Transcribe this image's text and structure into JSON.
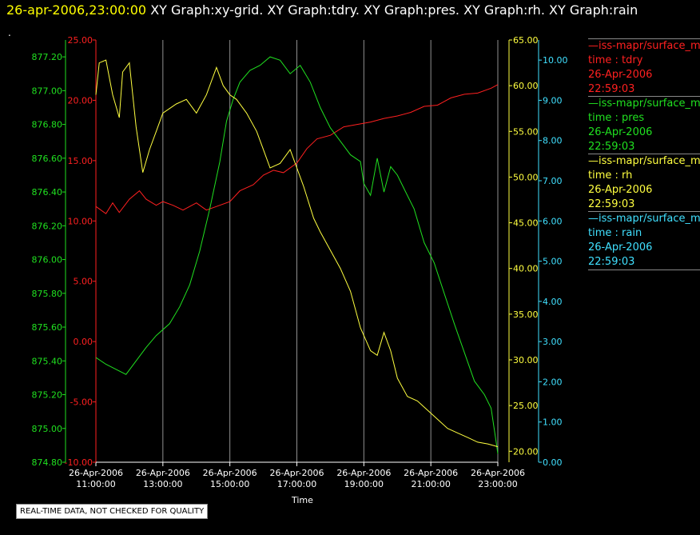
{
  "title": {
    "timestamp": "26-apr-2006,23:00:00",
    "graphs": "XY Graph:xy-grid.  XY Graph:tdry.  XY Graph:pres.  XY Graph:rh.  XY Graph:rain"
  },
  "dot": ".",
  "quality_note": "REAL-TIME DATA, NOT CHECKED FOR QUALITY",
  "legend": [
    {
      "header": "—iss-mapr/surface_m",
      "l1": "time : tdry",
      "l2": "26-Apr-2006",
      "l3": "22:59:03",
      "color": "#ff2020"
    },
    {
      "header": "—iss-mapr/surface_m",
      "l1": "time : pres",
      "l2": "26-Apr-2006",
      "l3": "22:59:03",
      "color": "#20e020"
    },
    {
      "header": "—iss-mapr/surface_m",
      "l1": "time : rh",
      "l2": "26-Apr-2006",
      "l3": "22:59:03",
      "color": "#ffff40"
    },
    {
      "header": "—iss-mapr/surface_m",
      "l1": "time : rain",
      "l2": "26-Apr-2006",
      "l3": "22:59:03",
      "color": "#40e0ff"
    }
  ],
  "chart_data": {
    "type": "line",
    "xlabel": "Time",
    "x_ticks": [
      {
        "date": "26-Apr-2006",
        "time": "11:00:00"
      },
      {
        "date": "26-Apr-2006",
        "time": "13:00:00"
      },
      {
        "date": "26-Apr-2006",
        "time": "15:00:00"
      },
      {
        "date": "26-Apr-2006",
        "time": "17:00:00"
      },
      {
        "date": "26-Apr-2006",
        "time": "19:00:00"
      },
      {
        "date": "26-Apr-2006",
        "time": "21:00:00"
      },
      {
        "date": "26-Apr-2006",
        "time": "23:00:00"
      }
    ],
    "x_hours": [
      11,
      23
    ],
    "grid": "vertical",
    "axes": {
      "pres": {
        "color": "#20e020",
        "range": [
          874.8,
          877.3
        ],
        "ticks": [
          "874.80",
          "875.00",
          "875.20",
          "875.40",
          "875.60",
          "875.80",
          "876.00",
          "876.20",
          "876.40",
          "876.60",
          "876.80",
          "877.00",
          "877.20"
        ]
      },
      "tdry": {
        "color": "#ff2020",
        "range": [
          -10,
          25
        ],
        "ticks": [
          "-10.00",
          "-5.00",
          "0.00",
          "5.00",
          "10.00",
          "15.00",
          "20.00",
          "25.00"
        ]
      },
      "rh": {
        "color": "#ffff40",
        "range": [
          18.8,
          65
        ],
        "ticks": [
          "20.00",
          "25.00",
          "30.00",
          "35.00",
          "40.00",
          "45.00",
          "50.00",
          "55.00",
          "60.00",
          "65.00"
        ]
      },
      "rain": {
        "color": "#40e0ff",
        "range": [
          0,
          10.5
        ],
        "ticks": [
          "0.00",
          "1.00",
          "2.00",
          "3.00",
          "4.00",
          "5.00",
          "6.00",
          "7.00",
          "8.00",
          "9.00",
          "10.00"
        ]
      }
    },
    "series": [
      {
        "name": "tdry",
        "axis": "tdry",
        "color": "#ff2020",
        "x": [
          11.0,
          11.3,
          11.5,
          11.7,
          12.0,
          12.3,
          12.5,
          12.8,
          13.0,
          13.3,
          13.6,
          14.0,
          14.3,
          14.6,
          15.0,
          15.3,
          15.7,
          16.0,
          16.3,
          16.6,
          17.0,
          17.3,
          17.6,
          18.0,
          18.4,
          18.8,
          19.2,
          19.6,
          20.0,
          20.4,
          20.8,
          21.2,
          21.6,
          22.0,
          22.4,
          22.8,
          23.0
        ],
        "y": [
          11.2,
          10.6,
          11.5,
          10.7,
          11.8,
          12.5,
          11.8,
          11.3,
          11.6,
          11.3,
          10.9,
          11.5,
          10.9,
          11.2,
          11.6,
          12.5,
          13.0,
          13.8,
          14.2,
          14.0,
          14.8,
          16.0,
          16.8,
          17.1,
          17.8,
          18.0,
          18.2,
          18.5,
          18.7,
          19.0,
          19.5,
          19.6,
          20.2,
          20.5,
          20.6,
          21.0,
          21.3
        ]
      },
      {
        "name": "pres",
        "axis": "pres",
        "color": "#20e020",
        "x": [
          11.0,
          11.3,
          11.6,
          11.9,
          12.2,
          12.5,
          12.8,
          13.2,
          13.5,
          13.8,
          14.1,
          14.4,
          14.7,
          14.9,
          15.1,
          15.3,
          15.6,
          15.9,
          16.2,
          16.5,
          16.8,
          17.1,
          17.4,
          17.7,
          18.0,
          18.3,
          18.6,
          18.9,
          19.0,
          19.2,
          19.4,
          19.6,
          19.8,
          20.0,
          20.2,
          20.5,
          20.8,
          21.1,
          21.4,
          21.7,
          22.0,
          22.3,
          22.6,
          22.8,
          22.95,
          23.0
        ],
        "y": [
          875.42,
          875.38,
          875.35,
          875.32,
          875.4,
          875.48,
          875.55,
          875.62,
          875.72,
          875.85,
          876.05,
          876.3,
          876.58,
          876.82,
          876.95,
          877.05,
          877.12,
          877.15,
          877.2,
          877.18,
          877.1,
          877.15,
          877.05,
          876.9,
          876.78,
          876.7,
          876.62,
          876.58,
          876.45,
          876.38,
          876.6,
          876.4,
          876.55,
          876.5,
          876.42,
          876.3,
          876.1,
          875.98,
          875.8,
          875.62,
          875.45,
          875.28,
          875.2,
          875.12,
          874.92,
          874.85
        ]
      },
      {
        "name": "rh",
        "axis": "rh",
        "color": "#ffff40",
        "x": [
          11.0,
          11.1,
          11.3,
          11.5,
          11.7,
          11.8,
          12.0,
          12.2,
          12.4,
          12.6,
          12.8,
          13.0,
          13.2,
          13.4,
          13.7,
          14.0,
          14.3,
          14.6,
          14.8,
          15.0,
          15.2,
          15.5,
          15.8,
          16.0,
          16.2,
          16.5,
          16.8,
          17.0,
          17.2,
          17.5,
          17.7,
          18.0,
          18.3,
          18.6,
          18.9,
          19.2,
          19.4,
          19.6,
          19.8,
          20.0,
          20.3,
          20.6,
          20.9,
          21.2,
          21.5,
          21.8,
          22.1,
          22.4,
          22.7,
          23.0
        ],
        "y": [
          59.0,
          62.5,
          62.8,
          59.0,
          56.5,
          61.5,
          62.5,
          55.5,
          50.5,
          53.0,
          55.0,
          57.0,
          57.5,
          58.0,
          58.5,
          57.0,
          59.0,
          62.0,
          60.0,
          59.0,
          58.5,
          57.0,
          55.0,
          53.0,
          51.0,
          51.5,
          53.0,
          51.0,
          49.0,
          45.5,
          44.0,
          42.0,
          40.0,
          37.5,
          33.5,
          31.0,
          30.5,
          33.0,
          31.0,
          28.0,
          26.0,
          25.5,
          24.5,
          23.5,
          22.5,
          22.0,
          21.5,
          21.0,
          20.8,
          20.5
        ]
      },
      {
        "name": "rain",
        "axis": "rain",
        "color": "#40e0ff",
        "x": [
          11.0,
          23.0
        ],
        "y": [
          0.0,
          0.0
        ]
      }
    ]
  }
}
